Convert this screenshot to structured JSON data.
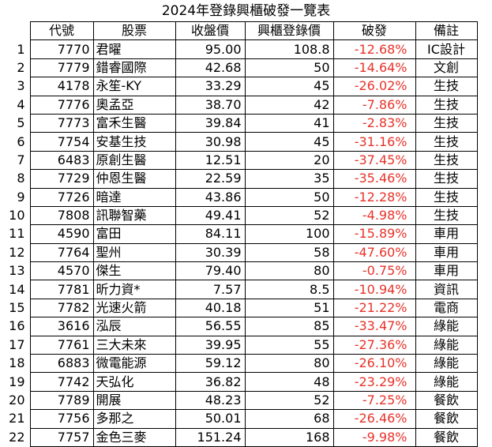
{
  "title": "2024年登錄興櫃破發一覽表",
  "headers": [
    "代號",
    "股票",
    "收盤價",
    "興櫃登錄價",
    "破發",
    "備註"
  ],
  "rows": [
    {
      "idx": "1",
      "code": "7770",
      "name": "君曜",
      "close": "95.00",
      "price": "108.8",
      "pct": "-12.68%",
      "note": "IC設計"
    },
    {
      "idx": "2",
      "code": "7779",
      "name": "錯睿國際",
      "close": "42.68",
      "price": "50",
      "pct": "-14.64%",
      "note": "文創"
    },
    {
      "idx": "3",
      "code": "4178",
      "name": "永笙-KY",
      "close": "33.29",
      "price": "45",
      "pct": "-26.02%",
      "note": "生技"
    },
    {
      "idx": "4",
      "code": "7776",
      "name": "奧孟亞",
      "close": "38.70",
      "price": "42",
      "pct": "-7.86%",
      "note": "生技"
    },
    {
      "idx": "5",
      "code": "7773",
      "name": "富禾生醫",
      "close": "39.84",
      "price": "41",
      "pct": "-2.83%",
      "note": "生技"
    },
    {
      "idx": "6",
      "code": "7754",
      "name": "安基生技",
      "close": "30.98",
      "price": "45",
      "pct": "-31.16%",
      "note": "生技"
    },
    {
      "idx": "7",
      "code": "6483",
      "name": "原創生醫",
      "close": "12.51",
      "price": "20",
      "pct": "-37.45%",
      "note": "生技"
    },
    {
      "idx": "8",
      "code": "7729",
      "name": "仲恩生醫",
      "close": "22.59",
      "price": "35",
      "pct": "-35.46%",
      "note": "生技"
    },
    {
      "idx": "9",
      "code": "7726",
      "name": "暗達",
      "close": "43.86",
      "price": "50",
      "pct": "-12.28%",
      "note": "生技"
    },
    {
      "idx": "10",
      "code": "7808",
      "name": "訊聯智藥",
      "close": "49.41",
      "price": "52",
      "pct": "-4.98%",
      "note": "生技"
    },
    {
      "idx": "11",
      "code": "4590",
      "name": "富田",
      "close": "84.11",
      "price": "100",
      "pct": "-15.89%",
      "note": "車用"
    },
    {
      "idx": "12",
      "code": "7764",
      "name": "聖州",
      "close": "30.39",
      "price": "58",
      "pct": "-47.60%",
      "note": "車用"
    },
    {
      "idx": "13",
      "code": "4570",
      "name": "傑生",
      "close": "79.40",
      "price": "80",
      "pct": "-0.75%",
      "note": "車用"
    },
    {
      "idx": "14",
      "code": "7781",
      "name": "昕力資*",
      "close": "7.57",
      "price": "8.5",
      "pct": "-10.94%",
      "note": "資訊"
    },
    {
      "idx": "15",
      "code": "7782",
      "name": "光速火箭",
      "close": "40.18",
      "price": "51",
      "pct": "-21.22%",
      "note": "電商"
    },
    {
      "idx": "16",
      "code": "3616",
      "name": "泓辰",
      "close": "56.55",
      "price": "85",
      "pct": "-33.47%",
      "note": "綠能"
    },
    {
      "idx": "17",
      "code": "7761",
      "name": "三大未來",
      "close": "39.95",
      "price": "55",
      "pct": "-27.36%",
      "note": "綠能"
    },
    {
      "idx": "18",
      "code": "6883",
      "name": "微電能源",
      "close": "59.12",
      "price": "80",
      "pct": "-26.10%",
      "note": "綠能"
    },
    {
      "idx": "19",
      "code": "7742",
      "name": "天弘化",
      "close": "36.82",
      "price": "48",
      "pct": "-23.29%",
      "note": "綠能"
    },
    {
      "idx": "20",
      "code": "7789",
      "name": "開展",
      "close": "48.23",
      "price": "52",
      "pct": "-7.25%",
      "note": "餐飲"
    },
    {
      "idx": "21",
      "code": "7756",
      "name": "多那之",
      "close": "50.01",
      "price": "68",
      "pct": "-26.46%",
      "note": "餐飲"
    },
    {
      "idx": "22",
      "code": "7757",
      "name": "金色三麥",
      "close": "151.24",
      "price": "168",
      "pct": "-9.98%",
      "note": "餐飲"
    }
  ],
  "colors": {
    "negative": "#e8322a",
    "text": "#000000",
    "border": "#000000"
  }
}
